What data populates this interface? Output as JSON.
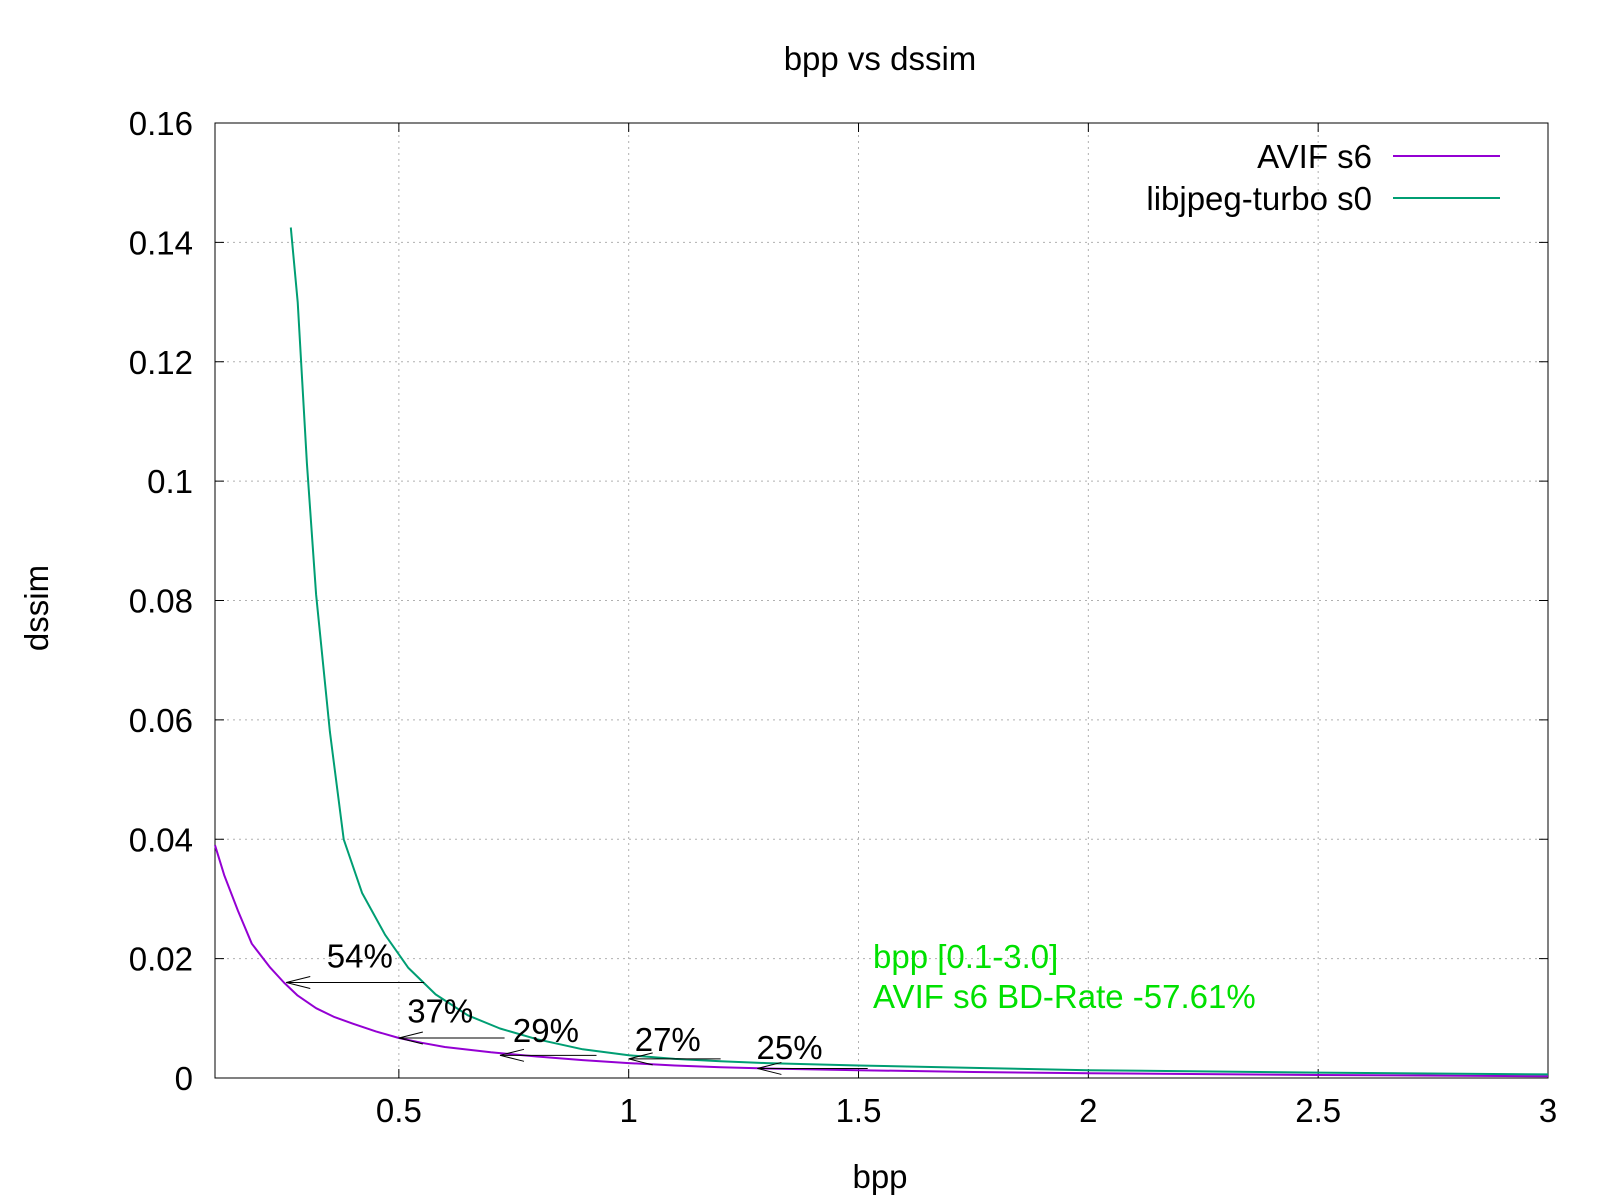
{
  "chart_data": {
    "type": "line",
    "title": "bpp vs dssim",
    "xlabel": "bpp",
    "ylabel": "dssim",
    "xlim": [
      0.1,
      3.0
    ],
    "ylim": [
      0,
      0.16
    ],
    "xticks": [
      0.5,
      1,
      1.5,
      2,
      2.5,
      3
    ],
    "xtick_labels": [
      "0.5",
      "1",
      "1.5",
      "2",
      "2.5",
      "3"
    ],
    "yticks": [
      0,
      0.02,
      0.04,
      0.06,
      0.08,
      0.1,
      0.12,
      0.14,
      0.16
    ],
    "ytick_labels": [
      "0",
      "0.02",
      "0.04",
      "0.06",
      "0.08",
      "0.1",
      "0.12",
      "0.14",
      "0.16"
    ],
    "grid": true,
    "legend_position": "top-right",
    "series": [
      {
        "name": "AVIF s6",
        "color": "#9400d3",
        "x": [
          0.1,
          0.12,
          0.15,
          0.18,
          0.22,
          0.25,
          0.28,
          0.32,
          0.36,
          0.4,
          0.45,
          0.5,
          0.55,
          0.6,
          0.7,
          0.8,
          0.9,
          1.0,
          1.1,
          1.2,
          1.3,
          1.5,
          1.75,
          2.0,
          2.5,
          3.0
        ],
        "y": [
          0.039,
          0.034,
          0.028,
          0.0225,
          0.0185,
          0.016,
          0.0138,
          0.0117,
          0.0102,
          0.0091,
          0.0078,
          0.0067,
          0.0059,
          0.0052,
          0.0043,
          0.0036,
          0.003,
          0.0025,
          0.0021,
          0.0018,
          0.0016,
          0.0013,
          0.001,
          0.0008,
          0.0005,
          0.0003
        ]
      },
      {
        "name": "libjpeg-turbo s0",
        "color": "#009e73",
        "x": [
          0.265,
          0.28,
          0.3,
          0.32,
          0.35,
          0.38,
          0.42,
          0.47,
          0.52,
          0.58,
          0.65,
          0.72,
          0.8,
          0.9,
          1.0,
          1.1,
          1.2,
          1.3,
          1.5,
          1.75,
          2.0,
          2.5,
          3.0
        ],
        "y": [
          0.1425,
          0.13,
          0.103,
          0.081,
          0.058,
          0.04,
          0.031,
          0.024,
          0.0185,
          0.014,
          0.0105,
          0.0083,
          0.0065,
          0.0048,
          0.0038,
          0.0032,
          0.0028,
          0.0025,
          0.0021,
          0.0017,
          0.0013,
          0.0009,
          0.0006
        ]
      }
    ],
    "annotations": [
      {
        "text": "54%",
        "tail_x": 0.555,
        "head_x": 0.255,
        "y": 0.016,
        "label_x": 0.415,
        "label_y": 0.0185
      },
      {
        "text": "37%",
        "tail_x": 0.73,
        "head_x": 0.5,
        "y": 0.0067,
        "label_x": 0.59,
        "label_y": 0.0093
      },
      {
        "text": "29%",
        "tail_x": 0.93,
        "head_x": 0.72,
        "y": 0.0038,
        "label_x": 0.82,
        "label_y": 0.006
      },
      {
        "text": "27%",
        "tail_x": 1.2,
        "head_x": 1.0,
        "y": 0.0032,
        "label_x": 1.085,
        "label_y": 0.0045
      },
      {
        "text": "25%",
        "tail_x": 1.52,
        "head_x": 1.28,
        "y": 0.0016,
        "label_x": 1.35,
        "label_y": 0.0032
      }
    ],
    "bd_rate": {
      "color": "#00e000",
      "lines": [
        "bpp [0.1-3.0]",
        "AVIF s6 BD-Rate -57.61%"
      ]
    }
  }
}
